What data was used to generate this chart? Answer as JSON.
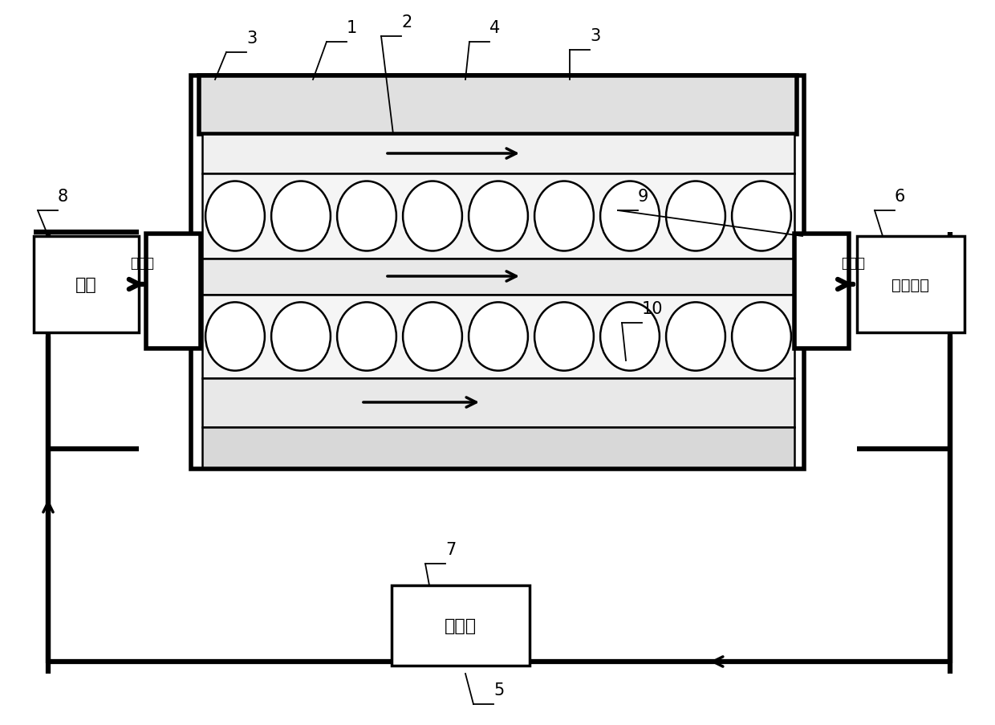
{
  "bg_color": "#ffffff",
  "lc": "#000000",
  "fig_w": 12.4,
  "fig_h": 9.04,
  "water_pump": "水泵",
  "heat_exchanger": "换热器",
  "coolant_tank": "冷却水筒",
  "coolant_in": "冷却液",
  "coolant_out": "冷却液",
  "n_cells_row": 9
}
